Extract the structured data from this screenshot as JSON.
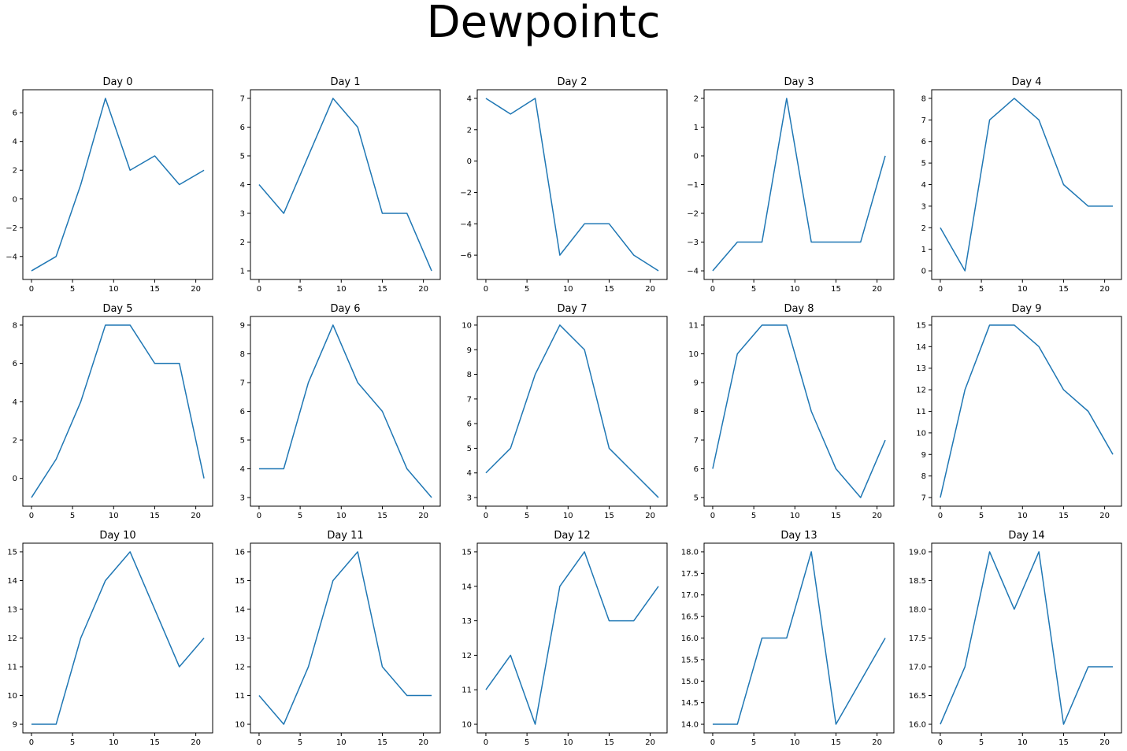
{
  "figure": {
    "title": "Dewpointc"
  },
  "chart_data": [
    {
      "type": "line",
      "title": "Day 0",
      "x": [
        0,
        3,
        6,
        9,
        12,
        15,
        18,
        21
      ],
      "y": [
        -5,
        -4,
        1,
        7,
        2,
        3,
        1,
        2
      ],
      "xticks": [
        0,
        5,
        10,
        15,
        20
      ],
      "yticks": [
        -4,
        -2,
        0,
        2,
        4,
        6
      ],
      "yticklabels": [
        "−4",
        "−2",
        "0",
        "2",
        "4",
        "6"
      ],
      "xlim": [
        -1.05,
        22.05
      ],
      "ylim": [
        -5.6,
        7.6
      ],
      "color": "#1f77b4"
    },
    {
      "type": "line",
      "title": "Day 1",
      "x": [
        0,
        3,
        6,
        9,
        12,
        15,
        18,
        21
      ],
      "y": [
        4,
        3,
        5,
        7,
        6,
        3,
        3,
        1
      ],
      "xticks": [
        0,
        5,
        10,
        15,
        20
      ],
      "yticks": [
        1,
        2,
        3,
        4,
        5,
        6,
        7
      ],
      "yticklabels": [
        "1",
        "2",
        "3",
        "4",
        "5",
        "6",
        "7"
      ],
      "xlim": [
        -1.05,
        22.05
      ],
      "ylim": [
        0.7,
        7.3
      ],
      "color": "#1f77b4"
    },
    {
      "type": "line",
      "title": "Day 2",
      "x": [
        0,
        3,
        6,
        9,
        12,
        15,
        18,
        21
      ],
      "y": [
        4,
        3,
        4,
        -6,
        -4,
        -4,
        -6,
        -7
      ],
      "xticks": [
        0,
        5,
        10,
        15,
        20
      ],
      "yticks": [
        -6,
        -4,
        -2,
        0,
        2,
        4
      ],
      "yticklabels": [
        "−6",
        "−4",
        "−2",
        "0",
        "2",
        "4"
      ],
      "xlim": [
        -1.05,
        22.05
      ],
      "ylim": [
        -7.55,
        4.55
      ],
      "color": "#1f77b4"
    },
    {
      "type": "line",
      "title": "Day 3",
      "x": [
        0,
        3,
        6,
        9,
        12,
        15,
        18,
        21
      ],
      "y": [
        -4,
        -3,
        -3,
        2,
        -3,
        -3,
        -3,
        0
      ],
      "xticks": [
        0,
        5,
        10,
        15,
        20
      ],
      "yticks": [
        -4,
        -3,
        -2,
        -1,
        0,
        1,
        2
      ],
      "yticklabels": [
        "−4",
        "−3",
        "−2",
        "−1",
        "0",
        "1",
        "2"
      ],
      "xlim": [
        -1.05,
        22.05
      ],
      "ylim": [
        -4.3,
        2.3
      ],
      "color": "#1f77b4"
    },
    {
      "type": "line",
      "title": "Day 4",
      "x": [
        0,
        3,
        6,
        9,
        12,
        15,
        18,
        21
      ],
      "y": [
        2,
        0,
        7,
        8,
        7,
        4,
        3,
        3
      ],
      "xticks": [
        0,
        5,
        10,
        15,
        20
      ],
      "yticks": [
        0,
        1,
        2,
        3,
        4,
        5,
        6,
        7,
        8
      ],
      "yticklabels": [
        "0",
        "1",
        "2",
        "3",
        "4",
        "5",
        "6",
        "7",
        "8"
      ],
      "xlim": [
        -1.05,
        22.05
      ],
      "ylim": [
        -0.4,
        8.4
      ],
      "color": "#1f77b4"
    },
    {
      "type": "line",
      "title": "Day 5",
      "x": [
        0,
        3,
        6,
        9,
        12,
        15,
        18,
        21
      ],
      "y": [
        -1,
        1,
        4,
        8,
        8,
        6,
        6,
        0
      ],
      "xticks": [
        0,
        5,
        10,
        15,
        20
      ],
      "yticks": [
        0,
        2,
        4,
        6,
        8
      ],
      "yticklabels": [
        "0",
        "2",
        "4",
        "6",
        "8"
      ],
      "xlim": [
        -1.05,
        22.05
      ],
      "ylim": [
        -1.45,
        8.45
      ],
      "color": "#1f77b4"
    },
    {
      "type": "line",
      "title": "Day 6",
      "x": [
        0,
        3,
        6,
        9,
        12,
        15,
        18,
        21
      ],
      "y": [
        4,
        4,
        7,
        9,
        7,
        6,
        4,
        3
      ],
      "xticks": [
        0,
        5,
        10,
        15,
        20
      ],
      "yticks": [
        3,
        4,
        5,
        6,
        7,
        8,
        9
      ],
      "yticklabels": [
        "3",
        "4",
        "5",
        "6",
        "7",
        "8",
        "9"
      ],
      "xlim": [
        -1.05,
        22.05
      ],
      "ylim": [
        2.7,
        9.3
      ],
      "color": "#1f77b4"
    },
    {
      "type": "line",
      "title": "Day 7",
      "x": [
        0,
        3,
        6,
        9,
        12,
        15,
        18,
        21
      ],
      "y": [
        4,
        5,
        8,
        10,
        9,
        5,
        4,
        3
      ],
      "xticks": [
        0,
        5,
        10,
        15,
        20
      ],
      "yticks": [
        3,
        4,
        5,
        6,
        7,
        8,
        9,
        10
      ],
      "yticklabels": [
        "3",
        "4",
        "5",
        "6",
        "7",
        "8",
        "9",
        "10"
      ],
      "xlim": [
        -1.05,
        22.05
      ],
      "ylim": [
        2.65,
        10.35
      ],
      "color": "#1f77b4"
    },
    {
      "type": "line",
      "title": "Day 8",
      "x": [
        0,
        3,
        6,
        9,
        12,
        15,
        18,
        21
      ],
      "y": [
        6,
        10,
        11,
        11,
        8,
        6,
        5,
        7
      ],
      "xticks": [
        0,
        5,
        10,
        15,
        20
      ],
      "yticks": [
        5,
        6,
        7,
        8,
        9,
        10,
        11
      ],
      "yticklabels": [
        "5",
        "6",
        "7",
        "8",
        "9",
        "10",
        "11"
      ],
      "xlim": [
        -1.05,
        22.05
      ],
      "ylim": [
        4.7,
        11.3
      ],
      "color": "#1f77b4"
    },
    {
      "type": "line",
      "title": "Day 9",
      "x": [
        0,
        3,
        6,
        9,
        12,
        15,
        18,
        21
      ],
      "y": [
        7,
        12,
        15,
        15,
        14,
        12,
        11,
        9
      ],
      "xticks": [
        0,
        5,
        10,
        15,
        20
      ],
      "yticks": [
        7,
        8,
        9,
        10,
        11,
        12,
        13,
        14,
        15
      ],
      "yticklabels": [
        "7",
        "8",
        "9",
        "10",
        "11",
        "12",
        "13",
        "14",
        "15"
      ],
      "xlim": [
        -1.05,
        22.05
      ],
      "ylim": [
        6.6,
        15.4
      ],
      "color": "#1f77b4"
    },
    {
      "type": "line",
      "title": "Day 10",
      "x": [
        0,
        3,
        6,
        9,
        12,
        15,
        18,
        21
      ],
      "y": [
        9,
        9,
        12,
        14,
        15,
        13,
        11,
        12
      ],
      "xticks": [
        0,
        5,
        10,
        15,
        20
      ],
      "yticks": [
        9,
        10,
        11,
        12,
        13,
        14,
        15
      ],
      "yticklabels": [
        "9",
        "10",
        "11",
        "12",
        "13",
        "14",
        "15"
      ],
      "xlim": [
        -1.05,
        22.05
      ],
      "ylim": [
        8.7,
        15.3
      ],
      "color": "#1f77b4"
    },
    {
      "type": "line",
      "title": "Day 11",
      "x": [
        0,
        3,
        6,
        9,
        12,
        15,
        18,
        21
      ],
      "y": [
        11,
        10,
        12,
        15,
        16,
        12,
        11,
        11
      ],
      "xticks": [
        0,
        5,
        10,
        15,
        20
      ],
      "yticks": [
        10,
        11,
        12,
        13,
        14,
        15,
        16
      ],
      "yticklabels": [
        "10",
        "11",
        "12",
        "13",
        "14",
        "15",
        "16"
      ],
      "xlim": [
        -1.05,
        22.05
      ],
      "ylim": [
        9.7,
        16.3
      ],
      "color": "#1f77b4"
    },
    {
      "type": "line",
      "title": "Day 12",
      "x": [
        0,
        3,
        6,
        9,
        12,
        15,
        18,
        21
      ],
      "y": [
        11,
        12,
        10,
        14,
        15,
        13,
        13,
        14
      ],
      "xticks": [
        0,
        5,
        10,
        15,
        20
      ],
      "yticks": [
        10,
        11,
        12,
        13,
        14,
        15
      ],
      "yticklabels": [
        "10",
        "11",
        "12",
        "13",
        "14",
        "15"
      ],
      "xlim": [
        -1.05,
        22.05
      ],
      "ylim": [
        9.75,
        15.25
      ],
      "color": "#1f77b4"
    },
    {
      "type": "line",
      "title": "Day 13",
      "x": [
        0,
        3,
        6,
        9,
        12,
        15,
        18,
        21
      ],
      "y": [
        14,
        14,
        16,
        16,
        18,
        14,
        15,
        16
      ],
      "xticks": [
        0,
        5,
        10,
        15,
        20
      ],
      "yticks": [
        14,
        14.5,
        15,
        15.5,
        16,
        16.5,
        17,
        17.5,
        18
      ],
      "yticklabels": [
        "14.0",
        "14.5",
        "15.0",
        "15.5",
        "16.0",
        "16.5",
        "17.0",
        "17.5",
        "18.0"
      ],
      "xlim": [
        -1.05,
        22.05
      ],
      "ylim": [
        13.8,
        18.2
      ],
      "color": "#1f77b4"
    },
    {
      "type": "line",
      "title": "Day 14",
      "x": [
        0,
        3,
        6,
        9,
        12,
        15,
        18,
        21
      ],
      "y": [
        16,
        17,
        19,
        18,
        19,
        16,
        17,
        17
      ],
      "xticks": [
        0,
        5,
        10,
        15,
        20
      ],
      "yticks": [
        16,
        16.5,
        17,
        17.5,
        18,
        18.5,
        19
      ],
      "yticklabels": [
        "16.0",
        "16.5",
        "17.0",
        "17.5",
        "18.0",
        "18.5",
        "19.0"
      ],
      "xlim": [
        -1.05,
        22.05
      ],
      "ylim": [
        15.85,
        19.15
      ],
      "color": "#1f77b4"
    }
  ]
}
